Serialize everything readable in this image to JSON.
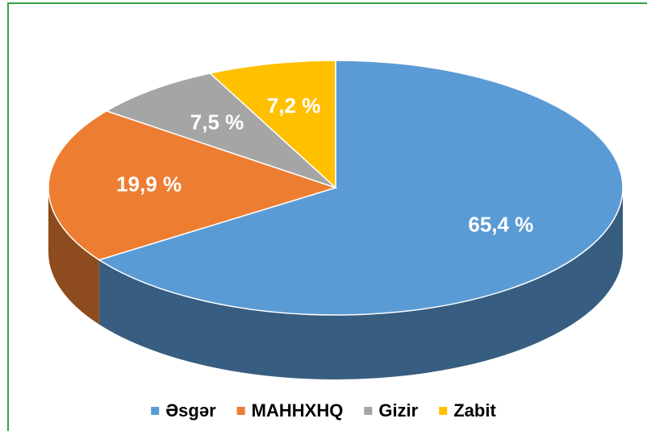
{
  "chart_data": {
    "type": "pie3d",
    "categories": [
      "Əsgər",
      "MAHHXHQ",
      "Gizir",
      "Zabit"
    ],
    "values": [
      65.4,
      19.9,
      7.5,
      7.2
    ],
    "value_labels": [
      "65,4 %",
      "19,9 %",
      "7,5 %",
      "7,2 %"
    ],
    "colors": [
      "#5b9bd5",
      "#ed7d31",
      "#a5a5a5",
      "#ffc000"
    ],
    "legend": "bottom"
  }
}
